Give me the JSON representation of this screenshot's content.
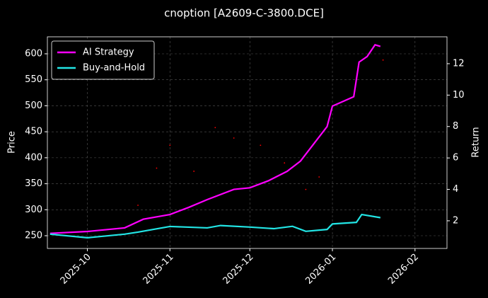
{
  "chart_data": {
    "type": "line",
    "title": "cnoption [A2609-C-3800.DCE]",
    "ylabel": "Price",
    "y2label": "Return",
    "xlim": [
      "2025-09-16",
      "2026-02-13"
    ],
    "xticks": [
      {
        "value": "2025-10-01",
        "label": "2025-10"
      },
      {
        "value": "2025-11-01",
        "label": "2025-11"
      },
      {
        "value": "2025-12-01",
        "label": "2025-12"
      },
      {
        "value": "2026-01-01",
        "label": "2026-01"
      },
      {
        "value": "2026-02-01",
        "label": "2026-02"
      }
    ],
    "ylim": [
      225.5,
      632.7
    ],
    "yticks": [
      250,
      300,
      350,
      400,
      450,
      500,
      550,
      600
    ],
    "y2lim": [
      0.24,
      13.71
    ],
    "y2ticks": [
      2,
      4,
      6,
      8,
      10,
      12
    ],
    "grid": true,
    "legend": "upper left",
    "series": [
      {
        "name": "AI Strategy",
        "color": "#ff00ff",
        "axis": "y2",
        "x": [
          "2025-09-17",
          "2025-10-01",
          "2025-10-15",
          "2025-10-22",
          "2025-11-01",
          "2025-11-08",
          "2025-11-15",
          "2025-11-25",
          "2025-12-01",
          "2025-12-08",
          "2025-12-15",
          "2025-12-20",
          "2025-12-25",
          "2025-12-30",
          "2026-01-01",
          "2026-01-09",
          "2026-01-11",
          "2026-01-14",
          "2026-01-17",
          "2026-01-19"
        ],
        "values": [
          1.2,
          1.32,
          1.55,
          2.1,
          2.4,
          2.85,
          3.35,
          4.0,
          4.1,
          4.55,
          5.15,
          5.8,
          6.9,
          8.0,
          9.3,
          9.9,
          12.1,
          12.45,
          13.2,
          13.1
        ]
      },
      {
        "name": "Buy-and-Hold",
        "color": "#22e5e5",
        "axis": "y2",
        "x": [
          "2025-09-17",
          "2025-10-01",
          "2025-10-15",
          "2025-10-20",
          "2025-11-01",
          "2025-11-15",
          "2025-11-20",
          "2025-12-01",
          "2025-12-10",
          "2025-12-17",
          "2025-12-22",
          "2025-12-30",
          "2026-01-01",
          "2026-01-10",
          "2026-01-12",
          "2026-01-19"
        ],
        "values": [
          1.15,
          0.92,
          1.15,
          1.28,
          1.64,
          1.55,
          1.7,
          1.6,
          1.5,
          1.65,
          1.33,
          1.45,
          1.8,
          1.9,
          2.4,
          2.2
        ]
      },
      {
        "type": "scatter",
        "color": "#ff0000",
        "x": [
          "2025-10-20",
          "2025-10-27",
          "2025-11-01",
          "2025-11-10",
          "2025-11-18",
          "2025-11-25",
          "2025-12-05",
          "2025-12-14",
          "2025-12-22",
          "2025-12-27",
          "2026-01-20"
        ],
        "values": [
          308.6,
          380,
          424,
          374,
          458,
          438,
          424,
          390,
          339,
          363,
          588
        ]
      }
    ]
  }
}
